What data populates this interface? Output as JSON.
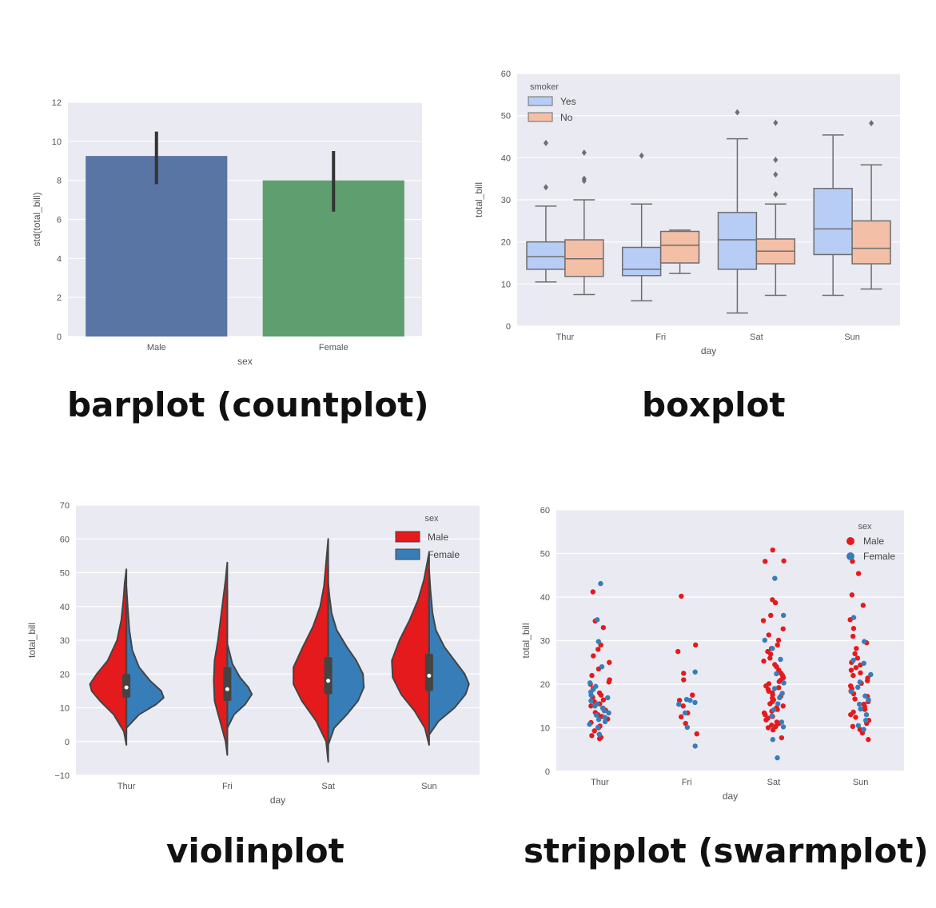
{
  "colors": {
    "background": "#eaeaf2",
    "grid": "#ffffff",
    "male_bar": "#5975a4",
    "female_bar": "#5f9e6e",
    "yes_box": "#b8cdf5",
    "no_box": "#f3bfa6",
    "box_line": "#6e6e6e",
    "violin_male": "#e41a1c",
    "violin_female": "#377eb8",
    "violin_outline": "#444444",
    "strip_male": "#e41a1c",
    "strip_female": "#377eb8",
    "error_bar": "#333333"
  },
  "captions": {
    "barplot": "barplot (countplot)",
    "boxplot": "boxplot",
    "violinplot": "violinplot",
    "stripplot": "stripplot (swarmplot)"
  },
  "chart_data": [
    {
      "id": "barplot",
      "type": "bar",
      "categories": [
        "Male",
        "Female"
      ],
      "values": [
        9.25,
        8.0
      ],
      "error_bars": [
        [
          7.8,
          10.5
        ],
        [
          6.4,
          9.5
        ]
      ],
      "xlabel": "sex",
      "ylabel": "std(total_bill)",
      "ylim": [
        0,
        12
      ],
      "yticks": [
        0,
        2,
        4,
        6,
        8,
        10,
        12
      ],
      "grid": true
    },
    {
      "id": "boxplot",
      "type": "box",
      "categories": [
        "Thur",
        "Fri",
        "Sat",
        "Sun"
      ],
      "xlabel": "day",
      "ylabel": "total_bill",
      "ylim": [
        0,
        60
      ],
      "yticks": [
        0,
        10,
        20,
        30,
        40,
        50,
        60
      ],
      "legend": {
        "title": "smoker",
        "placement": "top-left"
      },
      "series": [
        {
          "name": "Yes",
          "boxes": [
            {
              "whislo": 10.5,
              "q1": 13.5,
              "med": 16.5,
              "q3": 20.0,
              "whishi": 28.5,
              "fliers": [
                33.0,
                43.5
              ]
            },
            {
              "whislo": 6.0,
              "q1": 12.0,
              "med": 13.5,
              "q3": 18.7,
              "whishi": 29.0,
              "fliers": [
                40.5
              ]
            },
            {
              "whislo": 3.1,
              "q1": 13.5,
              "med": 20.5,
              "q3": 27.0,
              "whishi": 44.5,
              "fliers": [
                50.8
              ]
            },
            {
              "whislo": 7.3,
              "q1": 17.0,
              "med": 23.1,
              "q3": 32.7,
              "whishi": 45.4,
              "fliers": []
            }
          ]
        },
        {
          "name": "No",
          "boxes": [
            {
              "whislo": 7.5,
              "q1": 11.8,
              "med": 16.0,
              "q3": 20.5,
              "whishi": 30.0,
              "fliers": [
                34.5,
                35.0,
                41.2
              ]
            },
            {
              "whislo": 12.5,
              "q1": 15.0,
              "med": 19.2,
              "q3": 22.5,
              "whishi": 22.8,
              "fliers": []
            },
            {
              "whislo": 7.3,
              "q1": 14.8,
              "med": 17.8,
              "q3": 20.7,
              "whishi": 29.0,
              "fliers": [
                31.3,
                36.0,
                39.5,
                48.3
              ]
            },
            {
              "whislo": 8.8,
              "q1": 14.8,
              "med": 18.5,
              "q3": 25.0,
              "whishi": 38.3,
              "fliers": [
                48.2
              ]
            }
          ]
        }
      ],
      "grid": true
    },
    {
      "id": "violinplot",
      "type": "violin",
      "categories": [
        "Thur",
        "Fri",
        "Sat",
        "Sun"
      ],
      "xlabel": "day",
      "ylabel": "total_bill",
      "ylim": [
        -10,
        70
      ],
      "yticks": [
        -10,
        0,
        10,
        20,
        30,
        40,
        50,
        60,
        70
      ],
      "legend": {
        "title": "sex",
        "placement": "top-right"
      },
      "split": true,
      "series": [
        {
          "name": "Male",
          "violins": [
            {
              "min": -1,
              "max": 51,
              "median": 16.0,
              "q1": 13.0,
              "q3": 20.0,
              "density": [
                [
                  -1,
                  0.0
                ],
                [
                  3,
                  0.06
                ],
                [
                  8,
                  0.3
                ],
                [
                  12,
                  0.62
                ],
                [
                  15,
                  0.82
                ],
                [
                  17,
                  0.86
                ],
                [
                  20,
                  0.7
                ],
                [
                  24,
                  0.44
                ],
                [
                  30,
                  0.22
                ],
                [
                  36,
                  0.12
                ],
                [
                  42,
                  0.07
                ],
                [
                  47,
                  0.04
                ],
                [
                  51,
                  0.0
                ]
              ]
            },
            {
              "min": -4,
              "max": 53,
              "median": 15.5,
              "q1": 12.0,
              "q3": 22.0,
              "density": [
                [
                  -4,
                  0.0
                ],
                [
                  0,
                  0.04
                ],
                [
                  6,
                  0.17
                ],
                [
                  12,
                  0.3
                ],
                [
                  18,
                  0.32
                ],
                [
                  24,
                  0.3
                ],
                [
                  30,
                  0.22
                ],
                [
                  36,
                  0.16
                ],
                [
                  42,
                  0.1
                ],
                [
                  48,
                  0.04
                ],
                [
                  53,
                  0.0
                ]
              ]
            },
            {
              "min": -6,
              "max": 60,
              "median": 18.0,
              "q1": 14.0,
              "q3": 25.0,
              "density": [
                [
                  -6,
                  0.0
                ],
                [
                  0,
                  0.05
                ],
                [
                  6,
                  0.28
                ],
                [
                  12,
                  0.62
                ],
                [
                  17,
                  0.82
                ],
                [
                  22,
                  0.82
                ],
                [
                  28,
                  0.6
                ],
                [
                  34,
                  0.36
                ],
                [
                  40,
                  0.19
                ],
                [
                  46,
                  0.1
                ],
                [
                  53,
                  0.05
                ],
                [
                  60,
                  0.0
                ]
              ]
            },
            {
              "min": -1,
              "max": 56,
              "median": 19.5,
              "q1": 15.0,
              "q3": 26.0,
              "density": [
                [
                  -1,
                  0.0
                ],
                [
                  4,
                  0.1
                ],
                [
                  9,
                  0.34
                ],
                [
                  14,
                  0.66
                ],
                [
                  19,
                  0.86
                ],
                [
                  24,
                  0.88
                ],
                [
                  30,
                  0.7
                ],
                [
                  36,
                  0.46
                ],
                [
                  42,
                  0.26
                ],
                [
                  48,
                  0.12
                ],
                [
                  56,
                  0.0
                ]
              ]
            }
          ]
        },
        {
          "name": "Female",
          "violins": [
            {
              "min": 4,
              "max": 46,
              "median": 16.0,
              "q1": 13.0,
              "q3": 20.0,
              "density": [
                [
                  4,
                  0.0
                ],
                [
                  8,
                  0.3
                ],
                [
                  11,
                  0.7
                ],
                [
                  13,
                  0.88
                ],
                [
                  15,
                  0.82
                ],
                [
                  18,
                  0.56
                ],
                [
                  22,
                  0.3
                ],
                [
                  27,
                  0.14
                ],
                [
                  33,
                  0.07
                ],
                [
                  40,
                  0.03
                ],
                [
                  46,
                  0.0
                ]
              ]
            },
            {
              "min": 4,
              "max": 29,
              "median": 15.5,
              "q1": 12.0,
              "q3": 22.0,
              "density": [
                [
                  4,
                  0.0
                ],
                [
                  8,
                  0.16
                ],
                [
                  11,
                  0.42
                ],
                [
                  14,
                  0.58
                ],
                [
                  16,
                  0.5
                ],
                [
                  19,
                  0.3
                ],
                [
                  23,
                  0.12
                ],
                [
                  27,
                  0.04
                ],
                [
                  29,
                  0.0
                ]
              ]
            },
            {
              "min": -1,
              "max": 47,
              "median": 18.0,
              "q1": 14.0,
              "q3": 25.0,
              "density": [
                [
                  -1,
                  0.0
                ],
                [
                  4,
                  0.14
                ],
                [
                  8,
                  0.44
                ],
                [
                  12,
                  0.7
                ],
                [
                  16,
                  0.84
                ],
                [
                  20,
                  0.82
                ],
                [
                  24,
                  0.66
                ],
                [
                  28,
                  0.44
                ],
                [
                  33,
                  0.2
                ],
                [
                  38,
                  0.08
                ],
                [
                  43,
                  0.03
                ],
                [
                  47,
                  0.0
                ]
              ]
            },
            {
              "min": 2,
              "max": 51,
              "median": 19.5,
              "q1": 15.0,
              "q3": 26.0,
              "density": [
                [
                  2,
                  0.0
                ],
                [
                  6,
                  0.22
                ],
                [
                  10,
                  0.6
                ],
                [
                  14,
                  0.86
                ],
                [
                  17,
                  0.94
                ],
                [
                  20,
                  0.84
                ],
                [
                  24,
                  0.6
                ],
                [
                  28,
                  0.36
                ],
                [
                  33,
                  0.16
                ],
                [
                  38,
                  0.08
                ],
                [
                  45,
                  0.03
                ],
                [
                  51,
                  0.0
                ]
              ]
            }
          ]
        }
      ],
      "grid": true
    },
    {
      "id": "stripplot",
      "type": "scatter",
      "categories": [
        "Thur",
        "Fri",
        "Sat",
        "Sun"
      ],
      "xlabel": "day",
      "ylabel": "total_bill",
      "ylim": [
        0,
        60
      ],
      "yticks": [
        0,
        10,
        20,
        30,
        40,
        50,
        60
      ],
      "legend": {
        "title": "sex",
        "placement": "top-right"
      },
      "series": [
        {
          "name": "Male",
          "points": [
            {
              "cat": 0,
              "values": [
                7.5,
                7.8,
                8.2,
                9.3,
                10.0,
                10.4,
                11.2,
                12.0,
                12.6,
                13.0,
                13.5,
                14.0,
                14.5,
                15.0,
                15.5,
                16.0,
                16.4,
                17.0,
                17.5,
                18.0,
                19.0,
                20.0,
                20.5,
                21.0,
                22.0,
                23.5,
                25.0,
                26.5,
                28.0,
                29.0,
                33.0,
                34.5,
                41.2
              ]
            },
            {
              "cat": 1,
              "values": [
                8.6,
                11.0,
                12.5,
                13.4,
                15.0,
                16.3,
                17.5,
                21.0,
                22.5,
                27.5,
                29.0,
                40.2
              ]
            },
            {
              "cat": 2,
              "values": [
                7.7,
                9.5,
                10.0,
                10.3,
                10.6,
                11.0,
                11.3,
                11.8,
                12.2,
                12.6,
                13.0,
                13.4,
                13.8,
                14.2,
                14.6,
                15.0,
                15.5,
                16.0,
                16.4,
                16.8,
                17.2,
                17.6,
                18.0,
                18.4,
                18.8,
                19.2,
                19.6,
                20.1,
                20.6,
                21.0,
                21.5,
                22.0,
                22.5,
                23.2,
                24.0,
                24.5,
                25.3,
                26.0,
                26.9,
                27.5,
                28.2,
                29.0,
                30.1,
                31.3,
                32.7,
                34.6,
                35.8,
                38.7,
                39.4,
                48.2,
                48.3,
                50.8
              ]
            },
            {
              "cat": 3,
              "values": [
                7.3,
                8.8,
                9.6,
                10.3,
                11.0,
                11.7,
                12.4,
                13.0,
                13.6,
                14.2,
                14.8,
                15.4,
                16.0,
                16.6,
                17.2,
                17.8,
                18.4,
                19.0,
                19.6,
                20.2,
                20.8,
                21.4,
                22.0,
                22.6,
                23.2,
                23.8,
                24.4,
                25.0,
                26.0,
                27.0,
                28.2,
                29.5,
                31.0,
                32.8,
                34.8,
                38.1,
                40.5,
                45.4,
                48.2
              ]
            }
          ]
        },
        {
          "name": "Female",
          "points": [
            {
              "cat": 0,
              "values": [
                8.5,
                10.1,
                10.8,
                11.4,
                11.9,
                12.4,
                12.9,
                13.4,
                13.9,
                14.5,
                15.0,
                15.5,
                16.2,
                16.9,
                17.5,
                18.2,
                18.8,
                19.5,
                20.3,
                24.0,
                29.8,
                34.8,
                43.1
              ]
            },
            {
              "cat": 1,
              "values": [
                5.8,
                10.1,
                13.4,
                15.4,
                15.8,
                16.3,
                16.5,
                22.8
              ]
            },
            {
              "cat": 2,
              "values": [
                3.1,
                7.3,
                10.2,
                11.3,
                12.7,
                14.1,
                15.5,
                16.9,
                17.9,
                19.0,
                20.3,
                22.4,
                25.7,
                28.2,
                30.1,
                35.8,
                44.3
              ]
            },
            {
              "cat": 3,
              "values": [
                9.6,
                10.5,
                11.7,
                13.0,
                14.3,
                15.4,
                16.4,
                17.3,
                18.3,
                19.3,
                20.5,
                22.2,
                24.8,
                25.5,
                29.8,
                35.3
              ]
            }
          ]
        }
      ],
      "grid": true
    }
  ]
}
